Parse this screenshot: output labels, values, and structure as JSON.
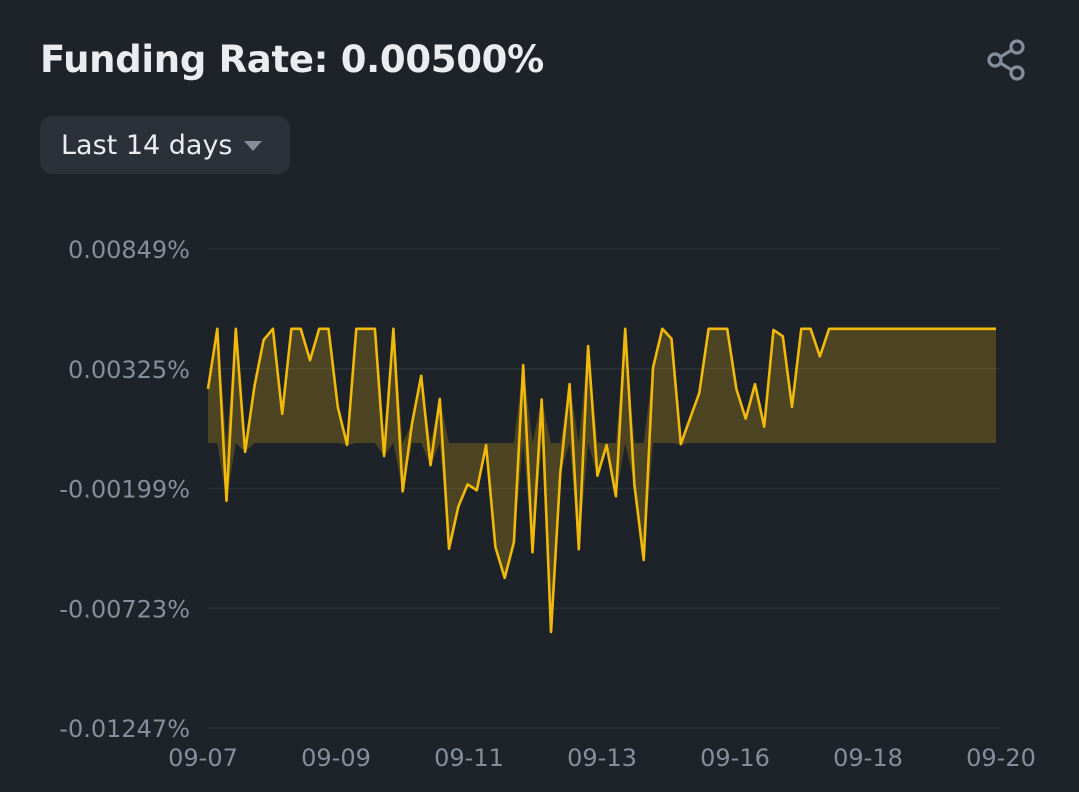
{
  "header": {
    "title": "Funding Rate: 0.00500%",
    "share_icon": "share-icon"
  },
  "range_selector": {
    "label": "Last 14 days",
    "caret_icon": "caret-down-icon"
  },
  "colors": {
    "background": "#1e2329",
    "line": "#f0b90b",
    "fill": "rgba(240,185,11,0.22)",
    "grid": "#2b3139",
    "tick": "#848e9c"
  },
  "chart_data": {
    "type": "area",
    "grid": true,
    "y_ticks": [
      "0.00849%",
      "0.00325%",
      "-0.00199%",
      "-0.00723%",
      "-0.01247%"
    ],
    "y_tick_values": [
      0.00849,
      0.00325,
      -0.00199,
      -0.00723,
      -0.01247
    ],
    "x_ticks": [
      "09-07",
      "09-09",
      "09-11",
      "09-13",
      "09-16",
      "09-18",
      "09-20"
    ],
    "ylim": [
      -0.01247,
      0.00849
    ],
    "baseline": 0,
    "values": [
      0.00237,
      0.005,
      -0.00253,
      0.005,
      -0.00039,
      0.00247,
      0.00451,
      0.005,
      0.00127,
      0.005,
      0.005,
      0.00362,
      0.005,
      0.005,
      0.00157,
      -8e-05,
      0.005,
      0.005,
      0.005,
      -0.00057,
      0.005,
      -0.00212,
      0.00085,
      0.00294,
      -0.00097,
      0.00193,
      -0.00463,
      -0.00279,
      -0.00181,
      -0.00207,
      -9e-05,
      -0.00455,
      -0.0059,
      -0.00434,
      0.00341,
      -0.00478,
      0.00191,
      -0.00827,
      -0.00131,
      0.00258,
      -0.00465,
      0.00424,
      -0.00143,
      -9e-05,
      -0.00233,
      0.005,
      -0.00182,
      -0.00512,
      0.00329,
      0.005,
      0.00456,
      -5e-05,
      0.00108,
      0.00219,
      0.005,
      0.005,
      0.005,
      0.00236,
      0.00107,
      0.00258,
      0.00071,
      0.00495,
      0.00467,
      0.00158,
      0.005,
      0.005,
      0.00379,
      0.005,
      0.005,
      0.005,
      0.005,
      0.005,
      0.005,
      0.005,
      0.005,
      0.005,
      0.005,
      0.005,
      0.005,
      0.005,
      0.005,
      0.005,
      0.005,
      0.005,
      0.005,
      0.005
    ]
  }
}
